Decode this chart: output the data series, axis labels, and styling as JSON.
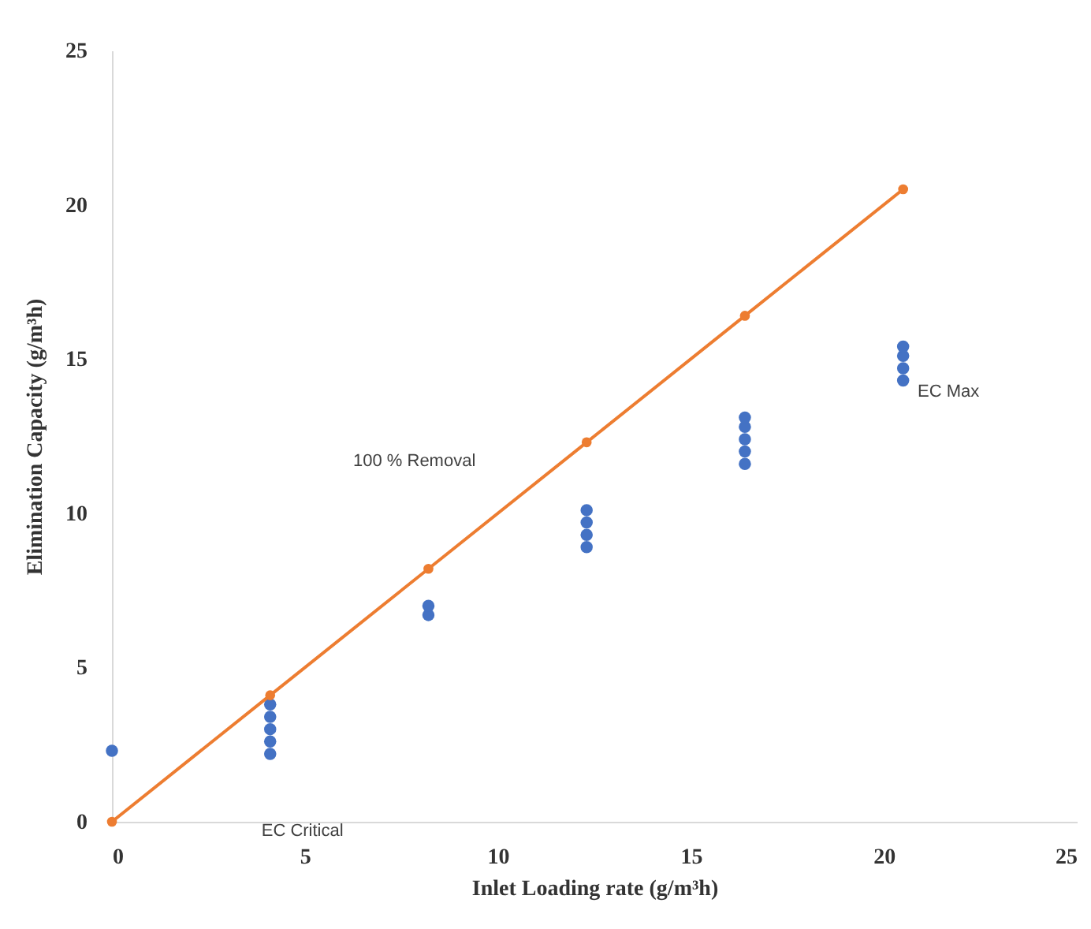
{
  "chart_data": {
    "type": "scatter",
    "xlabel": "Inlet Loading rate (g/m³h)",
    "ylabel": "Elimination Capacity (g/m³h)",
    "series": [
      {
        "color": "#4472c4",
        "marker": "circle",
        "x": [
          0,
          4.1,
          4.1,
          4.1,
          4.1,
          4.1,
          8.2,
          8.2,
          12.3,
          12.3,
          12.3,
          12.3,
          16.4,
          16.4,
          16.4,
          16.4,
          16.4,
          20.5,
          20.5,
          20.5,
          20.5
        ],
        "values": [
          2.3,
          2.2,
          2.6,
          3.0,
          3.4,
          3.8,
          6.7,
          7.0,
          8.9,
          9.3,
          9.7,
          10.1,
          11.6,
          12.0,
          12.4,
          12.8,
          13.1,
          14.3,
          14.7,
          15.1,
          15.4
        ]
      },
      {
        "type": "line",
        "color": "#ed7d31",
        "marker": "circle",
        "line_style": "solid",
        "x": [
          0,
          4.1,
          8.2,
          12.3,
          16.4,
          20.5
        ],
        "values": [
          0,
          4.1,
          8.2,
          12.3,
          16.4,
          20.5
        ]
      }
    ],
    "xlim": [
      0,
      25
    ],
    "xticks": [
      0,
      5,
      10,
      15,
      20,
      25
    ],
    "ylim": [
      0,
      25
    ],
    "yticks": [
      0,
      5,
      10,
      15,
      20,
      25
    ],
    "annotations": [
      "100 % Removal",
      "EC Max",
      "EC Critical"
    ]
  }
}
